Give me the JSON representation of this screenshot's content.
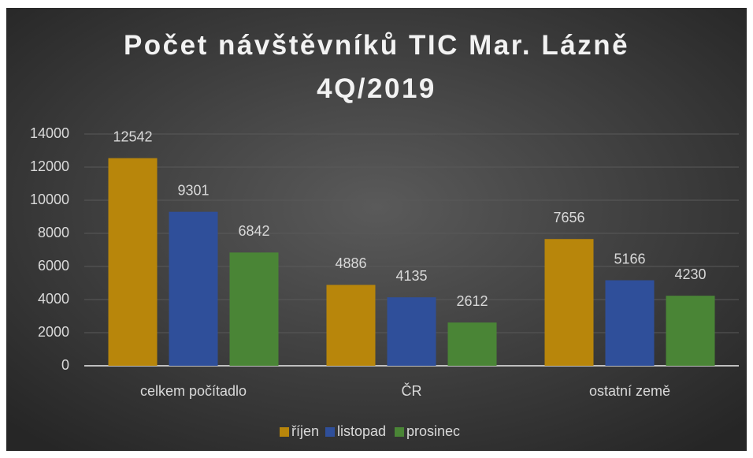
{
  "chart_data": {
    "type": "bar",
    "title": "Počet návštěvníků TIC Mar. Lázně 4Q/2019",
    "categories": [
      "celkem počítadlo",
      "ČR",
      "ostatní země"
    ],
    "series": [
      {
        "name": "říjen",
        "color": "#b8860b",
        "values": [
          12542,
          4886,
          7656
        ]
      },
      {
        "name": "listopad",
        "color": "#2f4f9a",
        "values": [
          9301,
          4135,
          5166
        ]
      },
      {
        "name": "prosinec",
        "color": "#4a8536",
        "values": [
          6842,
          2612,
          4230
        ]
      }
    ],
    "ylim": [
      0,
      14000
    ],
    "yticks": [
      0,
      2000,
      4000,
      6000,
      8000,
      10000,
      12000,
      14000
    ],
    "grid": true,
    "legend": "bottom"
  }
}
